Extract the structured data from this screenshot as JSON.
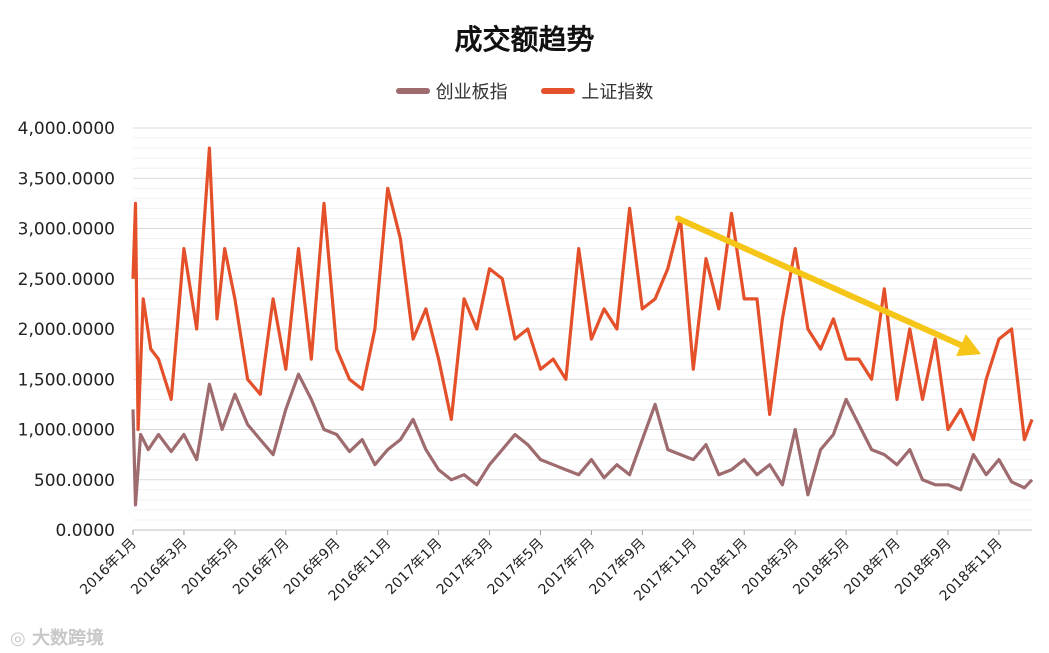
{
  "chart_data": {
    "type": "line",
    "title": "成交额趋势",
    "xlabel": "",
    "ylabel": "",
    "ylim": [
      0,
      4000
    ],
    "ytick_labels": [
      "0.0000",
      "500.0000",
      "1,000.0000",
      "1,500.0000",
      "2,000.0000",
      "2,500.0000",
      "3,000.0000",
      "3,500.0000",
      "4,000.0000"
    ],
    "ytick_values": [
      0,
      500,
      1000,
      1500,
      2000,
      2500,
      3000,
      3500,
      4000
    ],
    "x_months": [
      "2016年1月",
      "2016年3月",
      "2016年5月",
      "2016年7月",
      "2016年9月",
      "2016年11月",
      "2017年1月",
      "2017年3月",
      "2017年5月",
      "2017年7月",
      "2017年9月",
      "2017年11月",
      "2018年1月",
      "2018年3月",
      "2018年5月",
      "2018年7月",
      "2018年9月",
      "2018年11月"
    ],
    "grid": true,
    "legend_position": "top",
    "series": [
      {
        "name": "创业板指",
        "color": "#9e6b6f",
        "x": [
          0,
          0.1,
          0.3,
          0.6,
          1,
          1.5,
          2,
          2.5,
          3,
          3.5,
          4,
          4.5,
          5,
          5.5,
          6,
          6.5,
          7,
          7.5,
          8,
          8.5,
          9,
          9.5,
          10,
          10.5,
          11,
          11.5,
          12,
          12.5,
          13,
          13.5,
          14,
          14.5,
          15,
          15.5,
          16,
          16.5,
          17,
          17.5,
          18,
          18.5,
          19,
          19.5,
          20,
          20.5,
          21,
          21.5,
          22,
          22.5,
          23,
          23.5,
          24,
          24.5,
          25,
          25.5,
          26,
          26.5,
          27,
          27.5,
          28,
          28.5,
          29,
          29.5,
          30,
          30.5,
          31,
          31.5,
          32,
          32.5,
          33,
          33.5,
          34,
          34.5,
          35,
          35.3
        ],
        "y": [
          1200,
          250,
          950,
          800,
          950,
          780,
          950,
          700,
          1450,
          1000,
          1350,
          1050,
          900,
          750,
          1200,
          1550,
          1300,
          1000,
          950,
          780,
          900,
          650,
          800,
          900,
          1100,
          800,
          600,
          500,
          550,
          450,
          650,
          800,
          950,
          850,
          700,
          650,
          600,
          550,
          700,
          520,
          650,
          550,
          900,
          1250,
          800,
          750,
          700,
          850,
          550,
          600,
          700,
          550,
          650,
          450,
          1000,
          350,
          800,
          950,
          1300,
          1050,
          800,
          750,
          650,
          800,
          500,
          450,
          450,
          400,
          750,
          550,
          700,
          480,
          420,
          500
        ]
      },
      {
        "name": "上证指数",
        "color": "#e3502a",
        "x": [
          0,
          0.1,
          0.2,
          0.4,
          0.7,
          1,
          1.5,
          2,
          2.5,
          3,
          3.3,
          3.6,
          4,
          4.5,
          5,
          5.5,
          6,
          6.5,
          7,
          7.5,
          8,
          8.5,
          9,
          9.5,
          10,
          10.5,
          11,
          11.5,
          12,
          12.5,
          13,
          13.5,
          14,
          14.5,
          15,
          15.5,
          16,
          16.5,
          17,
          17.5,
          18,
          18.5,
          19,
          19.5,
          20,
          20.5,
          21,
          21.5,
          22,
          22.5,
          23,
          23.5,
          24,
          24.5,
          25,
          25.5,
          26,
          26.5,
          27,
          27.5,
          28,
          28.5,
          29,
          29.5,
          30,
          30.5,
          31,
          31.5,
          32,
          32.5,
          33,
          33.5,
          34,
          34.5,
          35,
          35.3
        ],
        "y": [
          2500,
          3250,
          1000,
          2300,
          1800,
          1700,
          1300,
          2800,
          2000,
          3800,
          2100,
          2800,
          2300,
          1500,
          1350,
          2300,
          1600,
          2800,
          1700,
          3250,
          1800,
          1500,
          1400,
          2000,
          3400,
          2900,
          1900,
          2200,
          1700,
          1100,
          2300,
          2000,
          2600,
          2500,
          1900,
          2000,
          1600,
          1700,
          1500,
          2800,
          1900,
          2200,
          2000,
          3200,
          2200,
          2300,
          2600,
          3100,
          1600,
          2700,
          2200,
          3150,
          2300,
          2300,
          1150,
          2100,
          2800,
          2000,
          1800,
          2100,
          1700,
          1700,
          1500,
          2400,
          1300,
          2000,
          1300,
          1900,
          1000,
          1200,
          900,
          1500,
          1900,
          2000,
          900,
          1100
        ]
      }
    ],
    "annotation": {
      "type": "arrow",
      "color": "#f5c518",
      "from": [
        21.4,
        3100
      ],
      "to": [
        33.3,
        1750
      ]
    }
  },
  "watermark": "大数跨境"
}
